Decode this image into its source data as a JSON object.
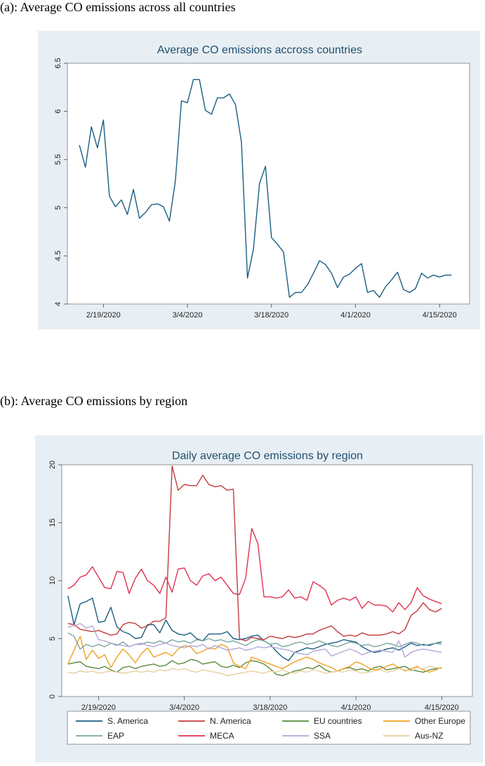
{
  "captions": {
    "a": "(a): Average CO emissions across all countries",
    "b": "(b): Average CO emissions by region"
  },
  "chart_data": [
    {
      "type": "line",
      "title": "Average CO emissions accross countries",
      "xlabel": "",
      "ylabel": "",
      "ylim": [
        4,
        6.5
      ],
      "yticks": [
        4,
        4.5,
        5,
        5.5,
        6,
        6.5
      ],
      "ytick_labels": [
        "4",
        "4.5",
        "5",
        "5.5",
        "6",
        "6.5"
      ],
      "x_range": [
        -6,
        61
      ],
      "xticks": [
        {
          "x": 0,
          "label": "2/19/2020"
        },
        {
          "x": 14,
          "label": "3/4/2020"
        },
        {
          "x": 28,
          "label": "3/18/2020"
        },
        {
          "x": 42,
          "label": "4/1/2020"
        },
        {
          "x": 56,
          "label": "4/15/2020"
        }
      ],
      "x_start_day": -4,
      "grid": false,
      "color": "#1a5e82",
      "series": [
        {
          "name": "Average",
          "values": [
            5.65,
            5.42,
            5.84,
            5.62,
            5.91,
            5.12,
            5.01,
            5.08,
            4.93,
            5.19,
            4.89,
            4.95,
            5.03,
            5.04,
            5.01,
            4.86,
            5.28,
            6.11,
            6.09,
            6.33,
            6.33,
            6.01,
            5.97,
            6.14,
            6.14,
            6.18,
            6.07,
            5.68,
            4.27,
            4.57,
            5.25,
            5.43,
            4.69,
            4.62,
            4.54,
            4.07,
            4.12,
            4.12,
            4.2,
            4.32,
            4.45,
            4.41,
            4.32,
            4.17,
            4.28,
            4.31,
            4.37,
            4.42,
            4.12,
            4.14,
            4.07,
            4.18,
            4.25,
            4.33,
            4.15,
            4.12,
            4.16,
            4.32,
            4.27,
            4.3,
            4.28,
            4.3,
            4.3
          ]
        }
      ]
    },
    {
      "type": "line",
      "title": "Daily average CO emissions by region",
      "xlabel": "",
      "ylabel": "",
      "ylim": [
        0,
        20
      ],
      "yticks": [
        0,
        5,
        10,
        15,
        20
      ],
      "ytick_labels": [
        "0",
        "5",
        "10",
        "15",
        "20"
      ],
      "x_range": [
        -6,
        61
      ],
      "xticks": [
        {
          "x": 0,
          "label": "2/19/2020"
        },
        {
          "x": 14,
          "label": "3/4/2020"
        },
        {
          "x": 28,
          "label": "3/18/2020"
        },
        {
          "x": 42,
          "label": "4/1/2020"
        },
        {
          "x": 56,
          "label": "4/15/2020"
        }
      ],
      "x_start_day": -5,
      "grid": false,
      "legend_position": "bottom",
      "series": [
        {
          "name": "S. America",
          "color": "#1a5e82",
          "values": [
            8.7,
            6.2,
            8.0,
            8.2,
            8.5,
            6.4,
            6.5,
            7.7,
            6.0,
            5.6,
            5.4,
            5.0,
            5.1,
            6.2,
            6.2,
            5.5,
            6.6,
            5.7,
            5.4,
            5.3,
            5.5,
            5.0,
            4.8,
            5.4,
            5.4,
            5.4,
            5.6,
            5.0,
            4.9,
            5.0,
            5.2,
            5.3,
            4.8,
            4.5,
            3.9,
            3.4,
            3.1,
            3.8,
            4.0,
            4.2,
            4.1,
            4.3,
            4.5,
            4.6,
            4.7,
            4.9,
            4.8,
            4.7,
            4.3,
            4.0,
            3.8,
            3.9,
            4.1,
            4.2,
            4.0,
            4.3,
            4.6,
            4.4,
            4.5,
            4.4,
            4.6,
            4.7
          ]
        },
        {
          "name": "N. America",
          "color": "#c23b3b",
          "values": [
            6.3,
            6.2,
            5.8,
            5.7,
            5.6,
            5.7,
            5.5,
            5.3,
            5.4,
            6.2,
            6.4,
            6.3,
            5.9,
            6.1,
            6.5,
            6.5,
            6.8,
            19.9,
            17.8,
            18.3,
            18.2,
            18.2,
            19.1,
            18.3,
            18.1,
            18.2,
            17.8,
            17.9,
            5.0,
            4.8,
            5.1,
            5.0,
            4.9,
            5.2,
            5.1,
            5.0,
            5.2,
            5.1,
            5.2,
            5.4,
            5.4,
            5.7,
            5.9,
            6.1,
            5.6,
            5.2,
            5.3,
            5.2,
            5.5,
            5.3,
            5.3,
            5.3,
            5.4,
            5.6,
            5.4,
            5.8,
            7.0,
            7.4,
            8.1,
            7.5,
            7.3,
            7.6
          ]
        },
        {
          "name": "EU countries",
          "color": "#5a8a3a",
          "values": [
            2.8,
            2.9,
            3.0,
            2.6,
            2.5,
            2.4,
            2.6,
            2.3,
            2.1,
            2.5,
            2.6,
            2.4,
            2.6,
            2.7,
            2.8,
            2.6,
            2.7,
            3.1,
            2.8,
            2.9,
            3.2,
            3.1,
            2.8,
            2.9,
            3.0,
            2.6,
            2.5,
            2.7,
            2.5,
            2.9,
            3.1,
            3.0,
            2.8,
            2.4,
            1.9,
            1.8,
            2.0,
            2.2,
            2.3,
            2.5,
            2.4,
            2.7,
            2.3,
            2.1,
            2.2,
            2.4,
            2.5,
            2.3,
            2.4,
            2.2,
            2.5,
            2.6,
            2.3,
            2.4,
            2.5,
            2.6,
            2.3,
            2.2,
            2.1,
            2.3,
            2.4,
            2.5
          ]
        },
        {
          "name": "Other Europe",
          "color": "#f0a020",
          "values": [
            2.8,
            4.0,
            5.2,
            3.2,
            4.0,
            3.3,
            3.6,
            2.5,
            3.4,
            4.1,
            3.6,
            2.9,
            3.7,
            4.2,
            3.4,
            3.6,
            3.8,
            3.5,
            4.1,
            4.4,
            4.3,
            3.7,
            3.9,
            4.2,
            4.1,
            4.5,
            4.3,
            2.9,
            2.6,
            2.4,
            3.4,
            3.2,
            3.0,
            2.8,
            2.6,
            2.4,
            2.7,
            3.0,
            3.2,
            3.4,
            3.2,
            2.9,
            2.7,
            2.5,
            2.2,
            2.4,
            2.6,
            3.0,
            2.8,
            2.5,
            2.3,
            2.4,
            2.6,
            2.8,
            2.5,
            2.2,
            2.4,
            2.6,
            2.3,
            2.1,
            2.3,
            2.5
          ]
        },
        {
          "name": "EAP",
          "color": "#7aa6a0",
          "values": [
            5.5,
            5.2,
            4.1,
            4.5,
            4.3,
            4.5,
            4.3,
            4.6,
            4.4,
            4.7,
            4.3,
            4.5,
            4.5,
            4.7,
            4.6,
            4.8,
            4.6,
            4.9,
            4.7,
            4.8,
            4.6,
            4.9,
            4.8,
            5.0,
            4.8,
            4.9,
            4.7,
            4.8,
            4.6,
            4.4,
            4.7,
            4.9,
            4.8,
            4.5,
            4.6,
            4.3,
            4.4,
            4.6,
            4.7,
            4.5,
            4.6,
            4.8,
            4.6,
            4.4,
            4.3,
            4.5,
            4.7,
            4.6,
            4.4,
            4.5,
            4.3,
            4.4,
            4.6,
            4.5,
            4.3,
            4.5,
            4.7,
            4.6,
            4.4,
            4.5,
            4.6,
            4.5
          ]
        },
        {
          "name": "MECA",
          "color": "#e03050",
          "values": [
            9.3,
            9.6,
            10.3,
            10.5,
            11.2,
            10.3,
            9.4,
            9.3,
            10.8,
            10.7,
            8.9,
            10.2,
            11.0,
            10.0,
            9.6,
            8.9,
            10.3,
            9.0,
            11.0,
            11.1,
            10.0,
            9.6,
            10.4,
            10.6,
            10.0,
            10.3,
            9.6,
            8.9,
            8.8,
            10.2,
            14.5,
            13.2,
            8.6,
            8.6,
            8.5,
            8.6,
            9.2,
            8.5,
            8.6,
            8.3,
            9.9,
            9.6,
            9.2,
            7.9,
            8.3,
            8.5,
            8.3,
            8.6,
            7.6,
            8.2,
            7.9,
            7.9,
            7.8,
            7.3,
            8.1,
            7.5,
            8.1,
            9.4,
            8.7,
            8.4,
            8.2,
            8.0
          ]
        },
        {
          "name": "SSA",
          "color": "#b3a8d8",
          "values": [
            6.0,
            6.1,
            6.3,
            5.9,
            6.1,
            4.9,
            4.8,
            4.6,
            4.5,
            4.4,
            4.3,
            4.5,
            4.6,
            4.4,
            4.3,
            4.5,
            4.6,
            4.4,
            4.3,
            4.2,
            4.4,
            4.3,
            4.5,
            4.1,
            4.4,
            4.2,
            4.0,
            4.1,
            4.2,
            4.0,
            4.1,
            4.3,
            4.2,
            4.3,
            4.2,
            4.1,
            4.0,
            3.8,
            3.7,
            3.6,
            3.9,
            4.0,
            4.1,
            3.5,
            3.7,
            3.9,
            4.1,
            3.9,
            3.6,
            3.8,
            3.9,
            4.0,
            3.9,
            3.8,
            4.8,
            3.4,
            3.8,
            4.0,
            4.1,
            4.0,
            3.9,
            3.8
          ]
        },
        {
          "name": "Aus-NZ",
          "color": "#e8cfa0",
          "values": [
            2.1,
            2.0,
            2.2,
            2.1,
            2.2,
            2.0,
            2.1,
            2.2,
            2.1,
            2.0,
            2.1,
            2.2,
            2.1,
            2.2,
            2.1,
            2.3,
            2.2,
            2.4,
            2.3,
            2.4,
            2.2,
            2.1,
            2.3,
            2.2,
            2.1,
            2.0,
            1.8,
            1.9,
            2.0,
            2.1,
            2.2,
            2.1,
            2.0,
            2.2,
            2.1,
            2.3,
            2.1,
            2.0,
            2.2,
            2.1,
            2.3,
            2.2,
            2.0,
            2.1,
            2.2,
            2.1,
            2.3,
            2.2,
            2.0,
            2.1,
            2.2,
            2.3,
            2.1,
            2.2,
            2.4,
            2.3,
            2.2,
            2.5,
            2.4,
            2.6,
            2.5,
            2.4
          ]
        }
      ]
    }
  ]
}
